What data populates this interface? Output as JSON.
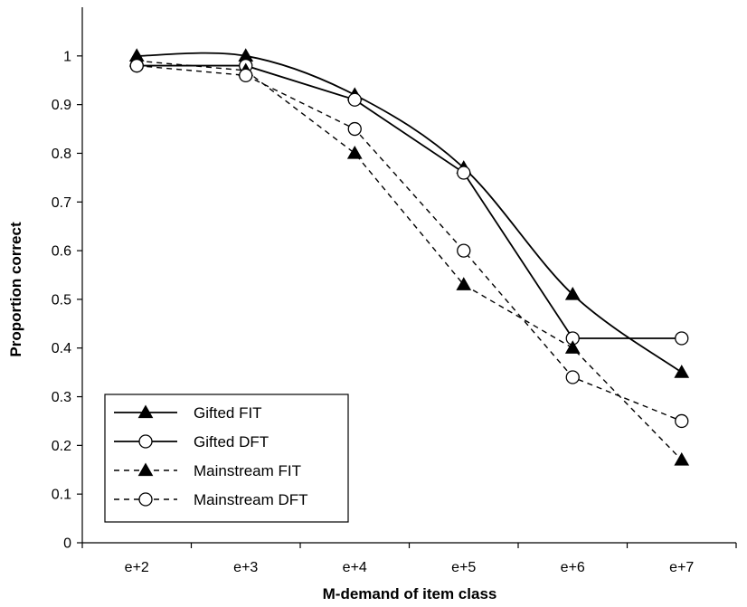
{
  "chart_data": {
    "type": "line",
    "xlabel": "M-demand of item class",
    "ylabel": "Proportion correct",
    "categories": [
      "e+2",
      "e+3",
      "e+4",
      "e+5",
      "e+6",
      "e+7"
    ],
    "ylim": [
      0,
      1.1
    ],
    "yticks": [
      "0",
      "0.1",
      "0.2",
      "0.3",
      "0.4",
      "0.5",
      "0.6",
      "0.7",
      "0.8",
      "0.9",
      "1"
    ],
    "grid": false,
    "legend_position": "bottom-left",
    "series": [
      {
        "name": "Gifted FIT",
        "values": [
          1.0,
          1.0,
          0.92,
          0.77,
          0.51,
          0.35
        ],
        "line": "solid",
        "marker": "filled-triangle",
        "smooth": true
      },
      {
        "name": "Gifted DFT",
        "values": [
          0.98,
          0.98,
          0.91,
          0.76,
          0.42,
          0.42
        ],
        "line": "solid",
        "marker": "open-circle",
        "smooth": false
      },
      {
        "name": "Mainstream FIT",
        "values": [
          0.99,
          0.97,
          0.8,
          0.53,
          0.4,
          0.17
        ],
        "line": "dashed",
        "marker": "filled-triangle",
        "smooth": false
      },
      {
        "name": "Mainstream DFT",
        "values": [
          0.98,
          0.96,
          0.85,
          0.6,
          0.34,
          0.25
        ],
        "line": "dashed",
        "marker": "open-circle",
        "smooth": false
      }
    ]
  }
}
